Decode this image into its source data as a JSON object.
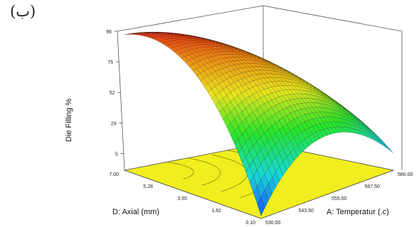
{
  "panel_label": "(ب)",
  "chart_data": {
    "type": "surface3d",
    "zlabel": "Die Filling %",
    "xlabel": "A: Temperatur (.c)",
    "ylabel": "D: Axial (mm)",
    "z_ticks": [
      "96",
      "75",
      "52",
      "29",
      "5"
    ],
    "x_ticks": [
      "530.00",
      "543.50",
      "555.00",
      "567.50",
      "580.00"
    ],
    "y_ticks": [
      "0.10",
      "1.82",
      "3.55",
      "5.28",
      "7.00"
    ],
    "xlim": [
      530,
      580
    ],
    "ylim": [
      0.1,
      7.0
    ],
    "zlim": [
      5,
      96
    ],
    "floor_color": "#f0ee1e",
    "colormap": [
      "#1a45ff",
      "#17d8d8",
      "#27e52a",
      "#e8e51e",
      "#ee8b14",
      "#ee1a12"
    ]
  }
}
